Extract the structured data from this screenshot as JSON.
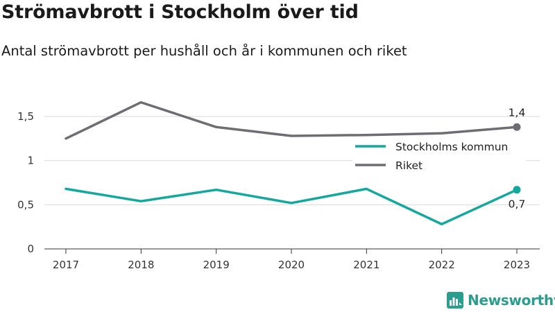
{
  "title": "Strömavbrott i Stockholm över tid",
  "subtitle": "Antal strömavbrott per hushåll och år i kommunen och riket",
  "brand": {
    "name": "Newsworthy",
    "icon": "newsworthy-logo-icon",
    "color": "#2a9d8f"
  },
  "chart_data": {
    "type": "line",
    "title": "Strömavbrott i Stockholm över tid",
    "subtitle": "Antal strömavbrott per hushåll och år i kommunen och riket",
    "xlabel": "",
    "ylabel": "",
    "x": [
      "2017",
      "2018",
      "2019",
      "2020",
      "2021",
      "2022",
      "2023"
    ],
    "ylim": [
      0,
      1.5
    ],
    "yticks": [
      0,
      0.5,
      1,
      1.5
    ],
    "ytick_labels": [
      "0",
      "0,5",
      "1",
      "1,5"
    ],
    "grid": true,
    "legend_position": "right",
    "series": [
      {
        "name": "Stockholms kommun",
        "color": "#13a89e",
        "values": [
          0.68,
          0.54,
          0.67,
          0.52,
          0.68,
          0.28,
          0.67
        ],
        "end_label": "0,7",
        "end_label_position": "below"
      },
      {
        "name": "Riket",
        "color": "#6e6d73",
        "values": [
          1.25,
          1.66,
          1.38,
          1.28,
          1.29,
          1.31,
          1.38
        ],
        "end_label": "1,4",
        "end_label_position": "above"
      }
    ]
  }
}
